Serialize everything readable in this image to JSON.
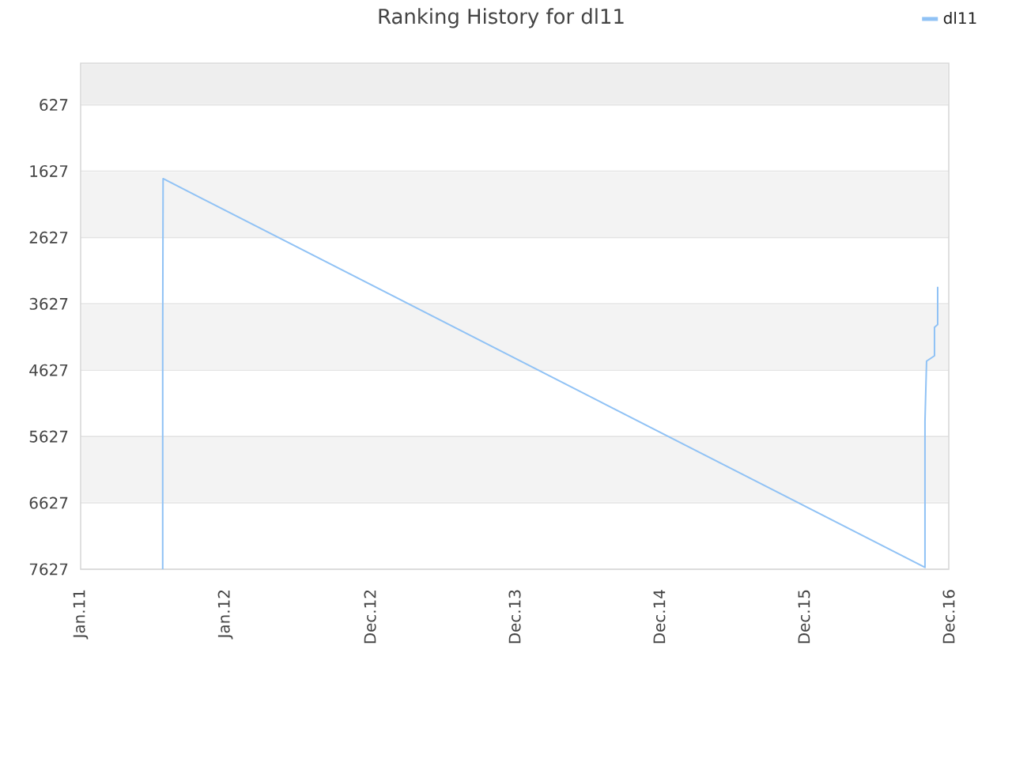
{
  "chart_data": {
    "type": "line",
    "title": "Ranking History for dl11",
    "x": [
      "2011-07-27",
      "2011-07-27",
      "2011-07-28",
      "2016-10-31",
      "2016-10-31",
      "2016-11-04",
      "2016-11-24",
      "2016-11-24",
      "2016-12-02",
      "2016-12-02"
    ],
    "series": [
      {
        "name": "dl11",
        "color": "#90c2f5",
        "values": [
          7627,
          4060,
          1740,
          7600,
          5400,
          4490,
          4410,
          3980,
          3940,
          3370
        ]
      }
    ],
    "xlim": [
      "2011-01-01",
      "2016-12-30"
    ],
    "xticks": [
      {
        "value": "2011-01-01",
        "label": "Jan.11"
      },
      {
        "value": "2012-01-01",
        "label": "Jan.12"
      },
      {
        "value": "2012-12-31",
        "label": "Dec.12"
      },
      {
        "value": "2013-12-31",
        "label": "Dec.13"
      },
      {
        "value": "2014-12-31",
        "label": "Dec.14"
      },
      {
        "value": "2015-12-31",
        "label": "Dec.15"
      },
      {
        "value": "2016-12-30",
        "label": "Dec.16"
      }
    ],
    "ylim": [
      7627,
      0
    ],
    "yticks": [
      627,
      1627,
      2627,
      3627,
      4627,
      5627,
      6627,
      7627
    ],
    "bands": [
      {
        "axis": "y",
        "from": 0,
        "to": 627,
        "color": "#eeeeee"
      },
      {
        "axis": "y",
        "from": 1627,
        "to": 2627,
        "color": "#f3f3f3"
      },
      {
        "axis": "y",
        "from": 3627,
        "to": 4627,
        "color": "#f3f3f3"
      },
      {
        "axis": "y",
        "from": 5627,
        "to": 6627,
        "color": "#f3f3f3"
      }
    ],
    "grid": "y",
    "legend": "top right",
    "line_style": "solid"
  }
}
